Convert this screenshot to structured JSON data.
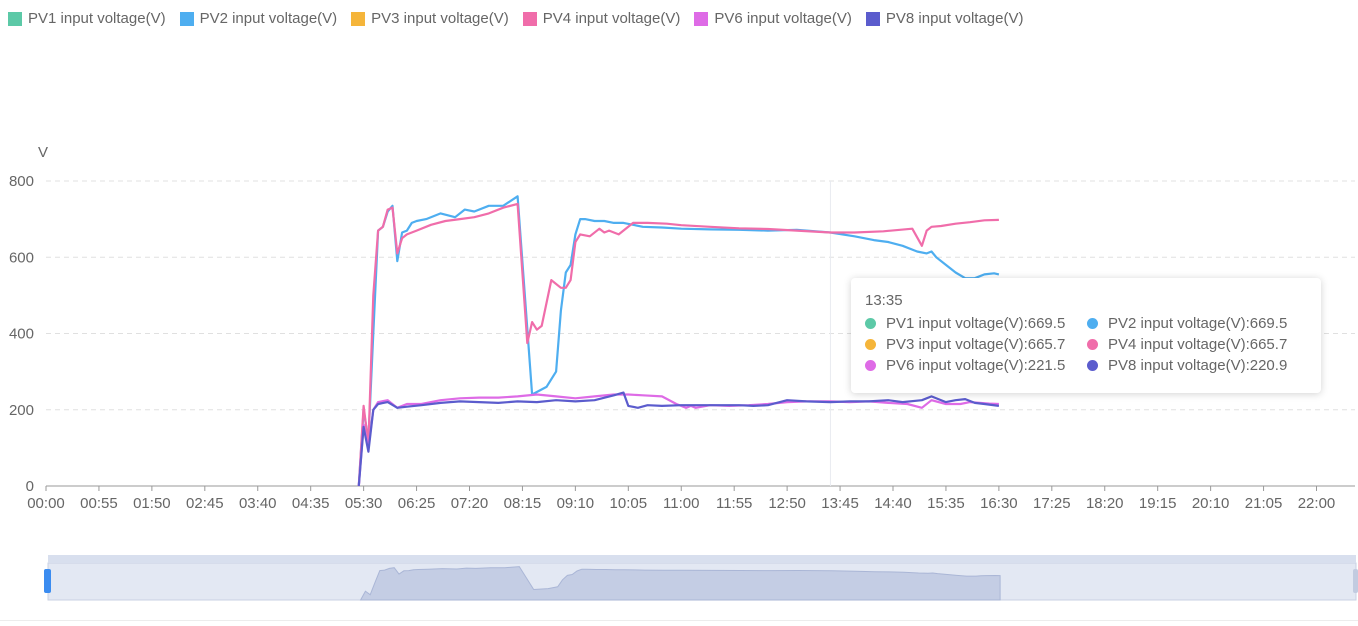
{
  "colors": {
    "pv1": "#5cc9a7",
    "pv2": "#4eaef0",
    "pv3": "#f5b53a",
    "pv4": "#f06daa",
    "pv6": "#de6be6",
    "pv8": "#5b5ccd",
    "grid": "#e0e0e0",
    "axis": "#999999",
    "zoom_fill": "#d5dbeb",
    "zoom_handle": "#3b8cf0"
  },
  "legend": [
    {
      "key": "pv1",
      "label": "PV1 input voltage(V)"
    },
    {
      "key": "pv2",
      "label": "PV2 input voltage(V)"
    },
    {
      "key": "pv3",
      "label": "PV3 input voltage(V)"
    },
    {
      "key": "pv4",
      "label": "PV4 input voltage(V)"
    },
    {
      "key": "pv6",
      "label": "PV6 input voltage(V)"
    },
    {
      "key": "pv8",
      "label": "PV8 input voltage(V)"
    }
  ],
  "tooltip": {
    "title": "13:35",
    "rows": [
      {
        "key": "pv1",
        "text": "PV1 input voltage(V):669.5"
      },
      {
        "key": "pv2",
        "text": "PV2 input voltage(V):669.5"
      },
      {
        "key": "pv3",
        "text": "PV3 input voltage(V):665.7"
      },
      {
        "key": "pv4",
        "text": "PV4 input voltage(V):665.7"
      },
      {
        "key": "pv6",
        "text": "PV6 input voltage(V):221.5"
      },
      {
        "key": "pv8",
        "text": "PV8 input voltage(V):220.9"
      }
    ]
  },
  "chart_data": {
    "type": "line",
    "ylabel": "V",
    "ylim": [
      0,
      800
    ],
    "y_ticks": [
      0,
      200,
      400,
      600,
      800
    ],
    "x_range_minutes": [
      0,
      1360
    ],
    "x_ticks": [
      "00:00",
      "00:55",
      "01:50",
      "02:45",
      "03:40",
      "04:35",
      "05:30",
      "06:25",
      "07:20",
      "08:15",
      "09:10",
      "10:05",
      "11:00",
      "11:55",
      "12:50",
      "13:45",
      "14:40",
      "15:35",
      "16:30",
      "17:25",
      "18:20",
      "19:15",
      "20:10",
      "21:05",
      "22:00"
    ],
    "grid": "horizontal dashed",
    "legend_position": "top-left",
    "series": [
      {
        "key": "pv2",
        "name": "PV2 input voltage(V)",
        "x": [
          "05:25",
          "05:30",
          "05:35",
          "05:40",
          "05:45",
          "05:50",
          "05:55",
          "06:00",
          "06:05",
          "06:10",
          "06:15",
          "06:20",
          "06:25",
          "06:35",
          "06:50",
          "07:05",
          "07:15",
          "07:25",
          "07:40",
          "07:55",
          "08:10",
          "08:25",
          "08:40",
          "08:50",
          "08:55",
          "09:00",
          "09:05",
          "09:10",
          "09:15",
          "09:20",
          "09:30",
          "09:40",
          "09:50",
          "10:00",
          "10:10",
          "10:20",
          "10:40",
          "11:00",
          "11:30",
          "12:00",
          "12:30",
          "13:00",
          "13:35",
          "14:00",
          "14:20",
          "14:35",
          "14:50",
          "15:05",
          "15:15",
          "15:20",
          "15:25",
          "15:35",
          "15:45",
          "15:55",
          "16:05",
          "16:10",
          "16:15",
          "16:25",
          "16:30"
        ],
        "y": [
          0,
          200,
          120,
          400,
          670,
          680,
          720,
          735,
          590,
          665,
          670,
          690,
          695,
          700,
          715,
          705,
          725,
          720,
          735,
          735,
          760,
          240,
          260,
          300,
          460,
          560,
          580,
          660,
          700,
          700,
          695,
          695,
          690,
          690,
          685,
          680,
          678,
          675,
          673,
          672,
          670,
          672,
          665,
          655,
          645,
          640,
          630,
          615,
          610,
          615,
          600,
          580,
          560,
          545,
          545,
          550,
          555,
          558,
          555
        ]
      },
      {
        "key": "pv4",
        "name": "PV4 input voltage(V)",
        "x": [
          "05:25",
          "05:30",
          "05:35",
          "05:40",
          "05:45",
          "05:50",
          "05:55",
          "06:00",
          "06:05",
          "06:10",
          "06:15",
          "06:25",
          "06:40",
          "06:55",
          "07:10",
          "07:25",
          "07:40",
          "07:55",
          "08:10",
          "08:20",
          "08:25",
          "08:30",
          "08:35",
          "08:45",
          "08:55",
          "09:00",
          "09:05",
          "09:10",
          "09:15",
          "09:25",
          "09:35",
          "09:40",
          "09:45",
          "09:55",
          "10:10",
          "10:25",
          "10:45",
          "11:00",
          "11:30",
          "12:00",
          "12:30",
          "13:00",
          "13:35",
          "14:00",
          "14:30",
          "15:00",
          "15:10",
          "15:15",
          "15:20",
          "15:30",
          "15:45",
          "16:00",
          "16:15",
          "16:30"
        ],
        "y": [
          0,
          210,
          110,
          500,
          670,
          680,
          725,
          730,
          610,
          650,
          660,
          670,
          685,
          695,
          700,
          705,
          715,
          730,
          740,
          375,
          430,
          410,
          420,
          540,
          520,
          520,
          540,
          640,
          660,
          655,
          675,
          665,
          670,
          660,
          690,
          690,
          688,
          684,
          680,
          676,
          674,
          670,
          665,
          665,
          668,
          675,
          630,
          670,
          680,
          682,
          688,
          692,
          697,
          698
        ]
      },
      {
        "key": "pv6",
        "name": "PV6 input voltage(V)",
        "x": [
          "05:25",
          "05:30",
          "05:35",
          "05:40",
          "05:45",
          "05:55",
          "06:05",
          "06:15",
          "06:30",
          "06:50",
          "07:10",
          "07:30",
          "07:50",
          "08:10",
          "08:30",
          "08:50",
          "09:10",
          "09:30",
          "09:50",
          "10:05",
          "10:20",
          "10:40",
          "10:55",
          "11:05",
          "11:10",
          "11:15",
          "11:30",
          "11:50",
          "12:10",
          "12:30",
          "12:50",
          "13:10",
          "13:35",
          "13:55",
          "14:15",
          "14:35",
          "14:55",
          "15:10",
          "15:20",
          "15:35",
          "15:50",
          "16:00",
          "16:10",
          "16:20",
          "16:30"
        ],
        "y": [
          0,
          160,
          100,
          200,
          220,
          225,
          205,
          215,
          215,
          225,
          230,
          232,
          232,
          235,
          240,
          235,
          230,
          235,
          240,
          240,
          238,
          235,
          215,
          205,
          210,
          205,
          212,
          210,
          212,
          215,
          220,
          222,
          222,
          220,
          222,
          218,
          215,
          205,
          225,
          215,
          215,
          220,
          218,
          216,
          215
        ]
      },
      {
        "key": "pv8",
        "name": "PV8 input voltage(V)",
        "x": [
          "05:25",
          "05:30",
          "05:35",
          "05:40",
          "05:45",
          "05:55",
          "06:05",
          "06:15",
          "06:30",
          "06:50",
          "07:10",
          "07:30",
          "07:50",
          "08:10",
          "08:30",
          "08:50",
          "09:10",
          "09:30",
          "09:50",
          "10:00",
          "10:05",
          "10:15",
          "10:25",
          "10:40",
          "11:00",
          "11:20",
          "11:40",
          "12:00",
          "12:15",
          "12:30",
          "12:50",
          "13:10",
          "13:35",
          "13:55",
          "14:15",
          "14:35",
          "14:50",
          "15:10",
          "15:20",
          "15:35",
          "15:45",
          "15:55",
          "16:05",
          "16:15",
          "16:30"
        ],
        "y": [
          0,
          155,
          90,
          200,
          215,
          220,
          205,
          208,
          212,
          218,
          222,
          220,
          218,
          222,
          220,
          225,
          222,
          225,
          238,
          245,
          210,
          205,
          212,
          210,
          212,
          212,
          212,
          212,
          210,
          212,
          225,
          222,
          220,
          222,
          222,
          225,
          220,
          225,
          235,
          220,
          225,
          228,
          218,
          215,
          210
        ]
      }
    ],
    "tooltip_time": "13:35"
  }
}
